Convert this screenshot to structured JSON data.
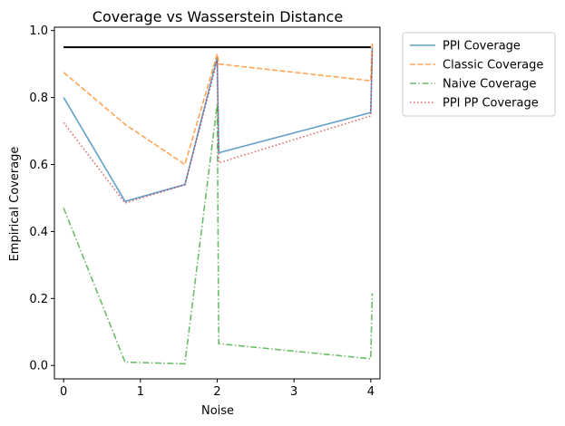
{
  "chart_data": {
    "type": "line",
    "title": "Coverage vs Wasserstein Distance",
    "xlabel": "Noise",
    "ylabel": "Empirical Coverage",
    "xlim": [
      -0.12,
      4.12
    ],
    "ylim": [
      -0.04,
      1.01
    ],
    "xticks": [
      0,
      1,
      2,
      3,
      4
    ],
    "yticks": [
      0.0,
      0.2,
      0.4,
      0.6,
      0.8,
      1.0
    ],
    "grid": false,
    "legend_position": "outside-top-right",
    "reference_line": {
      "y": 0.95,
      "x_range": [
        0,
        4
      ],
      "color": "#000000"
    },
    "series": [
      {
        "name": "PPI Coverage",
        "color": "#1f77b4",
        "style": "solid",
        "points": [
          [
            0,
            0.8
          ],
          [
            0.8,
            0.49
          ],
          [
            1.58,
            0.54
          ],
          [
            2.0,
            0.92
          ],
          [
            2.02,
            0.635
          ],
          [
            4.0,
            0.755
          ],
          [
            4.02,
            0.95
          ]
        ]
      },
      {
        "name": "Classic Coverage",
        "color": "#ff7f0e",
        "style": "dashed",
        "points": [
          [
            0,
            0.875
          ],
          [
            0.8,
            0.72
          ],
          [
            1.58,
            0.6
          ],
          [
            2.0,
            0.93
          ],
          [
            2.02,
            0.9
          ],
          [
            4.0,
            0.85
          ],
          [
            4.02,
            0.965
          ]
        ]
      },
      {
        "name": "Naive Coverage",
        "color": "#2ca02c",
        "style": "dashdot",
        "points": [
          [
            0,
            0.47
          ],
          [
            0.8,
            0.01
          ],
          [
            1.58,
            0.005
          ],
          [
            2.0,
            0.78
          ],
          [
            2.02,
            0.065
          ],
          [
            4.0,
            0.02
          ],
          [
            4.02,
            0.215
          ]
        ]
      },
      {
        "name": "PPI PP Coverage",
        "color": "#d62728",
        "style": "dotted",
        "points": [
          [
            0,
            0.725
          ],
          [
            0.8,
            0.485
          ],
          [
            1.58,
            0.54
          ],
          [
            2.0,
            0.91
          ],
          [
            2.02,
            0.605
          ],
          [
            4.0,
            0.745
          ],
          [
            4.02,
            0.94
          ]
        ]
      }
    ]
  }
}
